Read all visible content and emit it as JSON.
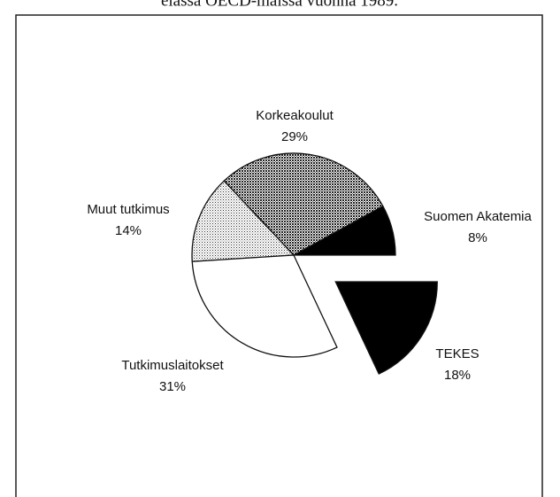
{
  "chart_data": {
    "type": "pie",
    "title": "elassa OECD-maissa vuonna 1989.",
    "categories": [
      "Suomen Akatemia",
      "Korkeakoulut",
      "Muut tutkimus",
      "Tutkimuslaitokset",
      "TEKES"
    ],
    "values": [
      8,
      29,
      14,
      31,
      18
    ],
    "value_labels": [
      "8%",
      "29%",
      "14%",
      "31%",
      "18%"
    ],
    "fills": [
      "#000000",
      "dense-dots",
      "light-dots",
      "#ffffff",
      "#000000"
    ],
    "explode": [
      false,
      false,
      false,
      false,
      true
    ]
  }
}
